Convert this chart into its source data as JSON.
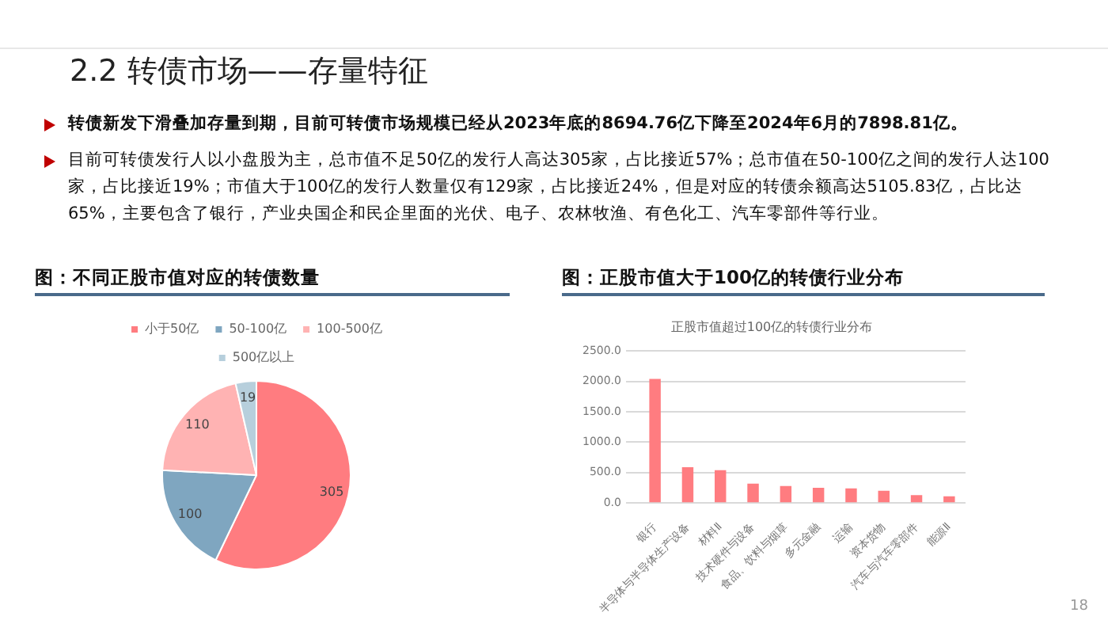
{
  "chart_data": [
    {
      "type": "other",
      "title": "2.2 转债市场——存量特征",
      "annotations": [
        "转债新发下滑叠加存量到期，目前可转债市场规模已经从2023年底的8694.76亿下降至2024年6月的7898.81亿。",
        "目前可转债发行人以小盘股为主，总市值不足50亿的发行人高达305家，占比接近57%；总市值在50-100亿之间的发行人达100家，占比接近19%；市值大于100亿的发行人数量仅有129家，占比接近24%，但是对应的转债余额高达5105.83亿，占比达65%，主要包含了银行，产业央国企和民企里面的光伏、电子、农林牧渔、有色化工、汽车零部件等行业。",
        "18"
      ]
    },
    {
      "type": "pie",
      "title": "图：不同正股市值对应的转债数量",
      "categories": [
        "小于50亿",
        "50-100亿",
        "100-500亿",
        "500亿以上"
      ],
      "values": [
        305,
        100,
        110,
        19
      ],
      "colors": [
        "#ff7c80",
        "#7fa6c0",
        "#ffb3b3",
        "#b7cfdc"
      ],
      "legend": "top",
      "data_labels": true
    },
    {
      "type": "bar",
      "title": "图：正股市值大于100亿的转债行业分布",
      "subtitle": "正股市值超过100亿的转债行业分布",
      "categories": [
        "银行",
        "半导体与半导体生产设备",
        "材料Ⅱ",
        "技术硬件与设备",
        "食品、饮料与烟草",
        "多元金融",
        "运输",
        "资本货物",
        "汽车与汽车零部件",
        "能源Ⅱ"
      ],
      "values": [
        2040,
        590,
        540,
        320,
        280,
        250,
        240,
        200,
        130,
        110
      ],
      "color": "#ff7c80",
      "ylim": [
        0,
        2500
      ],
      "yticks": [
        {
          "value": 0,
          "label": "0.0"
        },
        {
          "value": 500,
          "label": "500.0"
        },
        {
          "value": 1000,
          "label": "1000.0"
        },
        {
          "value": 1500,
          "label": "1500.0"
        },
        {
          "value": 2000,
          "label": "2000.0"
        },
        {
          "value": 2500,
          "label": "2500.0"
        }
      ],
      "grid": "y",
      "legend": false
    }
  ]
}
